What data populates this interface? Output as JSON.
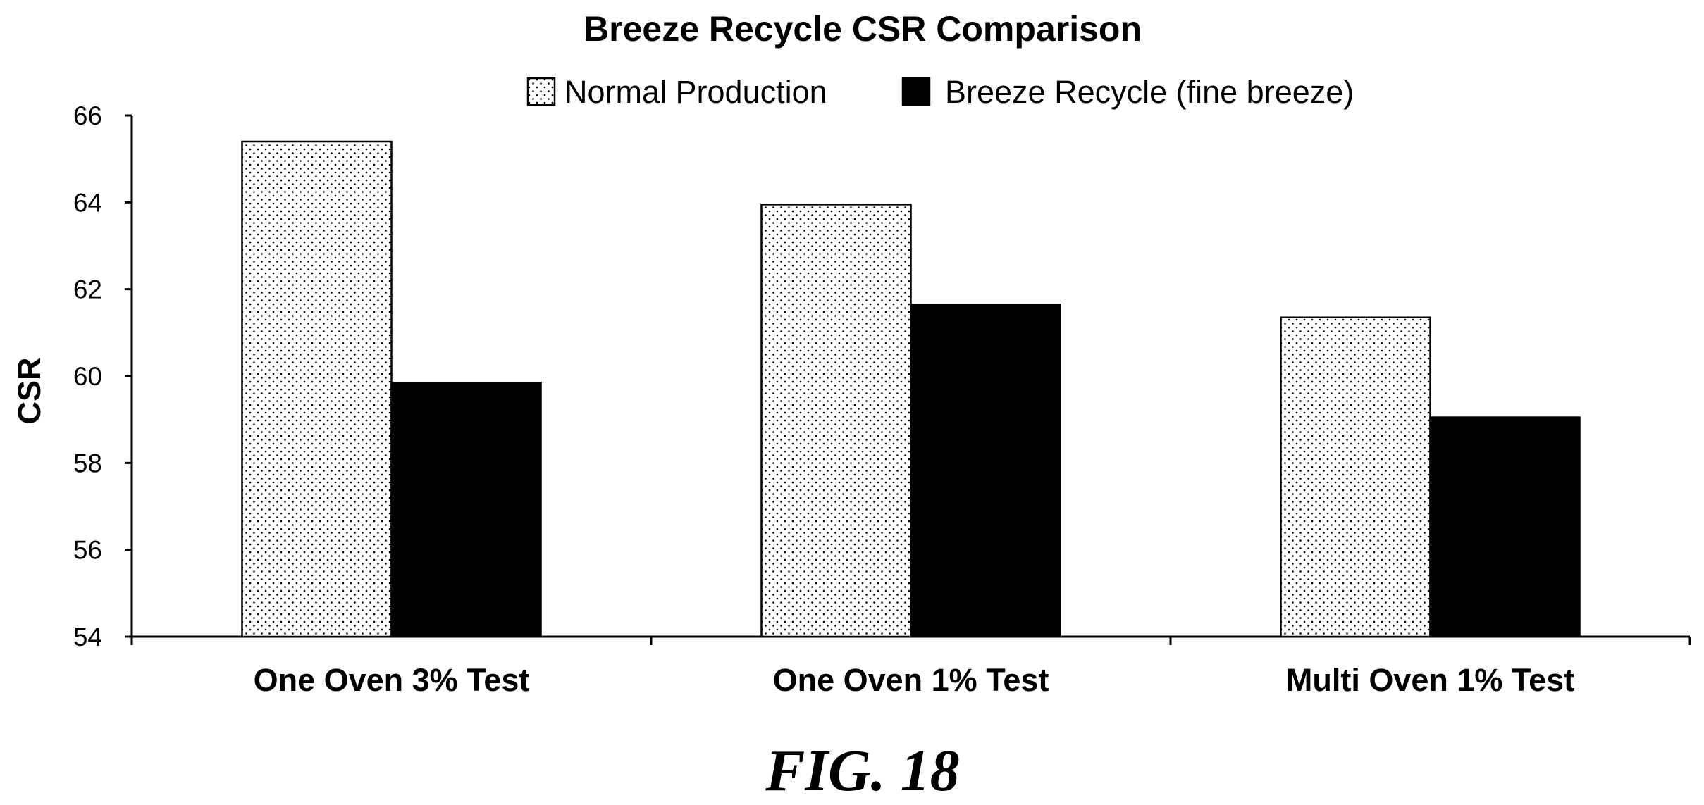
{
  "chart_data": {
    "type": "bar",
    "title": "Breeze Recycle CSR Comparison",
    "xlabel": "",
    "ylabel": "CSR",
    "ylim": [
      54,
      66
    ],
    "yticks": [
      54,
      56,
      58,
      60,
      62,
      64,
      66
    ],
    "ytick_labels": [
      "54",
      "56",
      "58",
      "60",
      "62",
      "64",
      "66"
    ],
    "grid": false,
    "legend_position": "top-center",
    "categories": [
      "One Oven 3% Test",
      "One Oven 1% Test",
      "Multi Oven 1% Test"
    ],
    "series": [
      {
        "name": "Normal Production",
        "values": [
          65.4,
          63.95,
          61.35
        ],
        "fill": "dotted",
        "color": "#ffffff"
      },
      {
        "name": "Breeze Recycle (fine breeze)",
        "values": [
          59.85,
          61.65,
          59.05
        ],
        "fill": "solid",
        "color": "#000000"
      }
    ]
  },
  "caption": "FIG. 18"
}
